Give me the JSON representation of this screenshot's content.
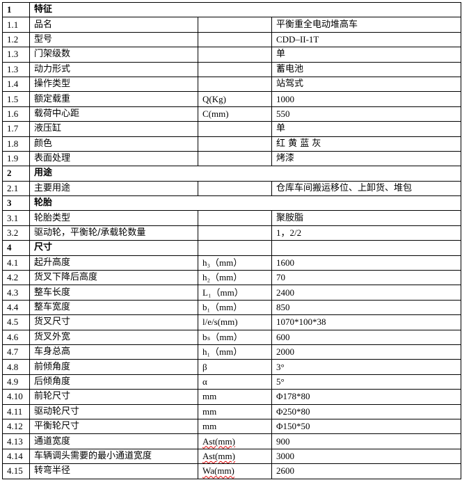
{
  "table": {
    "rows": [
      {
        "no": "1",
        "name": "特征",
        "section": true,
        "span": true
      },
      {
        "no": "1.1",
        "name": "品名",
        "unit": "",
        "value": "平衡重全电动堆高车"
      },
      {
        "no": "1.2",
        "name": "型号",
        "unit": "",
        "value": "CDD–II-1T"
      },
      {
        "no": "1.3",
        "name": "门架级数",
        "unit": "",
        "value": "单"
      },
      {
        "no": "1.3",
        "name": "动力形式",
        "unit": "",
        "value": "蓄电池"
      },
      {
        "no": "1.4",
        "name": "操作类型",
        "unit": "",
        "value": "站驾式"
      },
      {
        "no": "1.5",
        "name": "额定载重",
        "unit": "Q(Kg)",
        "value": "1000"
      },
      {
        "no": "1.6",
        "name": "载荷中心距",
        "unit": "C(mm)",
        "value": "550"
      },
      {
        "no": "1.7",
        "name": "液压缸",
        "unit": "",
        "value": "单"
      },
      {
        "no": "1.8",
        "name": "颜色",
        "unit": "",
        "value": "红 黄 蓝 灰"
      },
      {
        "no": "1.9",
        "name": "表面处理",
        "unit": "",
        "value": "烤漆"
      },
      {
        "no": "2",
        "name": "用途",
        "section": true,
        "span": true
      },
      {
        "no": "2.1",
        "name": "主要用途",
        "unit": "",
        "value": "仓库车间搬运移位、上卸货、堆包"
      },
      {
        "no": "3",
        "name": "轮胎",
        "section": true,
        "span": true
      },
      {
        "no": "3.1",
        "name": "轮胎类型",
        "unit": "",
        "value": "聚胺脂"
      },
      {
        "no": "3.2",
        "name": "驱动轮，平衡轮/承载轮数量",
        "unit": "",
        "value": "1，2/2"
      },
      {
        "no": "4",
        "name": "尺寸",
        "section": true,
        "unit": "",
        "value": ""
      },
      {
        "no": "4.1",
        "name": "起升高度",
        "unit": "h₃（mm）",
        "value": "1600"
      },
      {
        "no": "4.2",
        "name": "货叉下降后高度",
        "unit": "h₂（mm）",
        "value": "70"
      },
      {
        "no": "4.3",
        "name": "整车长度",
        "unit": "L₁（mm）",
        "value": "2400"
      },
      {
        "no": "4.4",
        "name": "整车宽度",
        "unit": "b₁（mm）",
        "value": "850"
      },
      {
        "no": "4.5",
        "name": "货叉尺寸",
        "unit": "l/e/s(mm)",
        "value": "1070*100*38"
      },
      {
        "no": "4.6",
        "name": "货叉外宽",
        "unit": "bₛ（mm）",
        "value": "600"
      },
      {
        "no": "4.7",
        "name": "车身总高",
        "unit": "h₁（mm）",
        "value": "2000"
      },
      {
        "no": "4.8",
        "name": "前倾角度",
        "unit": "β",
        "value": "3°"
      },
      {
        "no": "4.9",
        "name": "后倾角度",
        "unit": "α",
        "value": "5°"
      },
      {
        "no": "4.10",
        "name": "前轮尺寸",
        "unit": "mm",
        "value": "Φ178*80"
      },
      {
        "no": "4.11",
        "name": "驱动轮尺寸",
        "unit": "mm",
        "value": "Φ250*80"
      },
      {
        "no": "4.12",
        "name": "平衡轮尺寸",
        "unit": "mm",
        "value": "Φ150*50"
      },
      {
        "no": "4.13",
        "name": "通道宽度",
        "unit": "Ast(mm)",
        "value": "900",
        "squiggle": true
      },
      {
        "no": "4.14",
        "name": "车辆调头需要的最小通道宽度",
        "unit": "Ast(mm)",
        "value": "3000",
        "squiggle": true
      },
      {
        "no": "4.15",
        "name": "转弯半径",
        "unit": "Wa(mm)",
        "value": "2600",
        "squiggle": true
      }
    ]
  }
}
